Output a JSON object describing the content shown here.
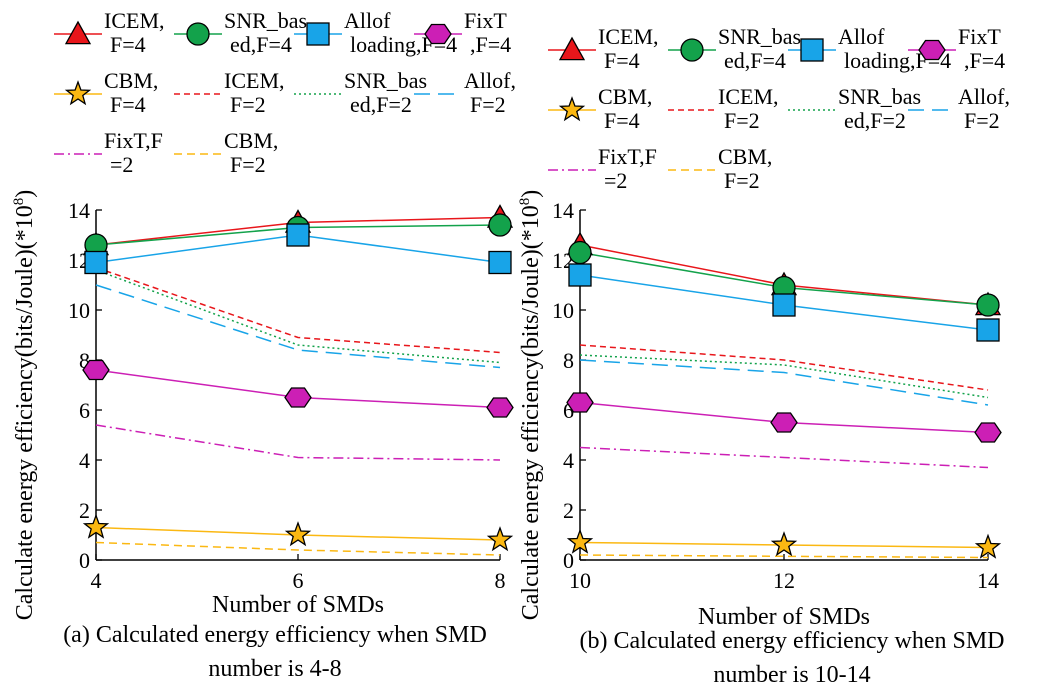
{
  "legend_entries": [
    {
      "key": "icem4",
      "text": [
        "ICEM,",
        "F=4"
      ],
      "color": "#e8161b",
      "dash": "",
      "marker": "triangle",
      "fill": "#e8161b"
    },
    {
      "key": "snr4",
      "text": [
        "SNR_bas",
        "ed,F=4"
      ],
      "color": "#13a24b",
      "dash": "",
      "marker": "circle",
      "fill": "#13a24b"
    },
    {
      "key": "allof4",
      "text": [
        "Allof",
        "loading,F=4"
      ],
      "color": "#18a4e8",
      "dash": "",
      "marker": "square",
      "fill": "#18a4e8"
    },
    {
      "key": "fixt4",
      "text": [
        "FixT",
        ",F=4"
      ],
      "color": "#cc1fb5",
      "dash": "",
      "marker": "hexagon",
      "fill": "#cc1fb5"
    },
    {
      "key": "cbm4",
      "text": [
        "CBM,",
        "F=4"
      ],
      "color": "#fbb812",
      "dash": "",
      "marker": "star",
      "fill": "#fbb812"
    },
    {
      "key": "icem2",
      "text": [
        "ICEM,",
        "F=2"
      ],
      "color": "#e8161b",
      "dash": "6,4",
      "marker": "none",
      "fill": ""
    },
    {
      "key": "snr2",
      "text": [
        "SNR_bas",
        "ed,F=2"
      ],
      "color": "#13a24b",
      "dash": "2,3",
      "marker": "none",
      "fill": ""
    },
    {
      "key": "allof2",
      "text": [
        "Allof,",
        "F=2"
      ],
      "color": "#18a4e8",
      "dash": "16,8",
      "marker": "none",
      "fill": ""
    },
    {
      "key": "fixt2",
      "text": [
        "FixT,F",
        "=2"
      ],
      "color": "#cc1fb5",
      "dash": "10,4,2,4",
      "marker": "none",
      "fill": ""
    },
    {
      "key": "cbm2",
      "text": [
        "CBM,",
        "F=2"
      ],
      "color": "#fbb812",
      "dash": "8,5",
      "marker": "none",
      "fill": ""
    }
  ],
  "chart_data": [
    {
      "type": "line",
      "title": "",
      "caption": [
        "(a) Calculated energy efficiency when SMD",
        "number is 4-8"
      ],
      "xlabel": "Number of SMDs",
      "ylabel": "Calculate energy efficiency(bits/Joule)(*10^8)",
      "ylabel_main": "Calculate energy efficiency(bits/Joule)(*10",
      "ylabel_exp": "8",
      "ylabel_tail": ")",
      "x": [
        4,
        6,
        8
      ],
      "xlim": [
        4,
        8
      ],
      "ylim": [
        0,
        14
      ],
      "xticks": [
        4,
        6,
        8
      ],
      "yticks": [
        0,
        2,
        4,
        6,
        8,
        10,
        12,
        14
      ],
      "series": [
        {
          "key": "icem4",
          "name": "ICEM,F=4",
          "values": [
            12.6,
            13.5,
            13.7
          ]
        },
        {
          "key": "snr4",
          "name": "SNR_based,F=4",
          "values": [
            12.6,
            13.3,
            13.4
          ]
        },
        {
          "key": "allof4",
          "name": "Allof loading,F=4",
          "values": [
            11.9,
            13.0,
            11.9
          ]
        },
        {
          "key": "fixt4",
          "name": "FixT,F=4",
          "values": [
            7.6,
            6.5,
            6.1
          ]
        },
        {
          "key": "cbm4",
          "name": "CBM,F=4",
          "values": [
            1.3,
            1.0,
            0.8
          ]
        },
        {
          "key": "icem2",
          "name": "ICEM,F=2",
          "values": [
            11.7,
            8.9,
            8.3
          ]
        },
        {
          "key": "snr2",
          "name": "SNR_based,F=2",
          "values": [
            11.6,
            8.6,
            7.9
          ]
        },
        {
          "key": "allof2",
          "name": "Allof,F=2",
          "values": [
            11.0,
            8.4,
            7.7
          ]
        },
        {
          "key": "fixt2",
          "name": "FixT,F=2",
          "values": [
            5.4,
            4.1,
            4.0
          ]
        },
        {
          "key": "cbm2",
          "name": "CBM,F=2",
          "values": [
            0.7,
            0.4,
            0.2
          ]
        }
      ]
    },
    {
      "type": "line",
      "title": "",
      "caption": [
        "(b) Calculated energy efficiency when SMD",
        "number is 10-14"
      ],
      "xlabel": "Number of SMDs",
      "ylabel": "Calculate energy efficiency(bits/Joule)(*10^8)",
      "ylabel_main": "Calculate energy efficiency(bits/Joule)(*10",
      "ylabel_exp": "8",
      "ylabel_tail": ")",
      "x": [
        10,
        12,
        14
      ],
      "xlim": [
        10,
        14
      ],
      "ylim": [
        0,
        14
      ],
      "xticks": [
        10,
        12,
        14
      ],
      "yticks": [
        0,
        2,
        4,
        6,
        8,
        10,
        12,
        14
      ],
      "series": [
        {
          "key": "icem4",
          "name": "ICEM,F=4",
          "values": [
            12.6,
            11.0,
            10.2
          ]
        },
        {
          "key": "snr4",
          "name": "SNR_based,F=4",
          "values": [
            12.3,
            10.9,
            10.2
          ]
        },
        {
          "key": "allof4",
          "name": "Allof loading,F=4",
          "values": [
            11.4,
            10.2,
            9.2
          ]
        },
        {
          "key": "fixt4",
          "name": "FixT,F=4",
          "values": [
            6.3,
            5.5,
            5.1
          ]
        },
        {
          "key": "cbm4",
          "name": "CBM,F=4",
          "values": [
            0.7,
            0.6,
            0.5
          ]
        },
        {
          "key": "icem2",
          "name": "ICEM,F=2",
          "values": [
            8.6,
            8.0,
            6.8
          ]
        },
        {
          "key": "snr2",
          "name": "SNR_based,F=2",
          "values": [
            8.2,
            7.8,
            6.5
          ]
        },
        {
          "key": "allof2",
          "name": "Allof,F=2",
          "values": [
            8.0,
            7.5,
            6.2
          ]
        },
        {
          "key": "fixt2",
          "name": "FixT,F=2",
          "values": [
            4.5,
            4.1,
            3.7
          ]
        },
        {
          "key": "cbm2",
          "name": "CBM,F=2",
          "values": [
            0.2,
            0.15,
            0.1
          ]
        }
      ]
    }
  ]
}
